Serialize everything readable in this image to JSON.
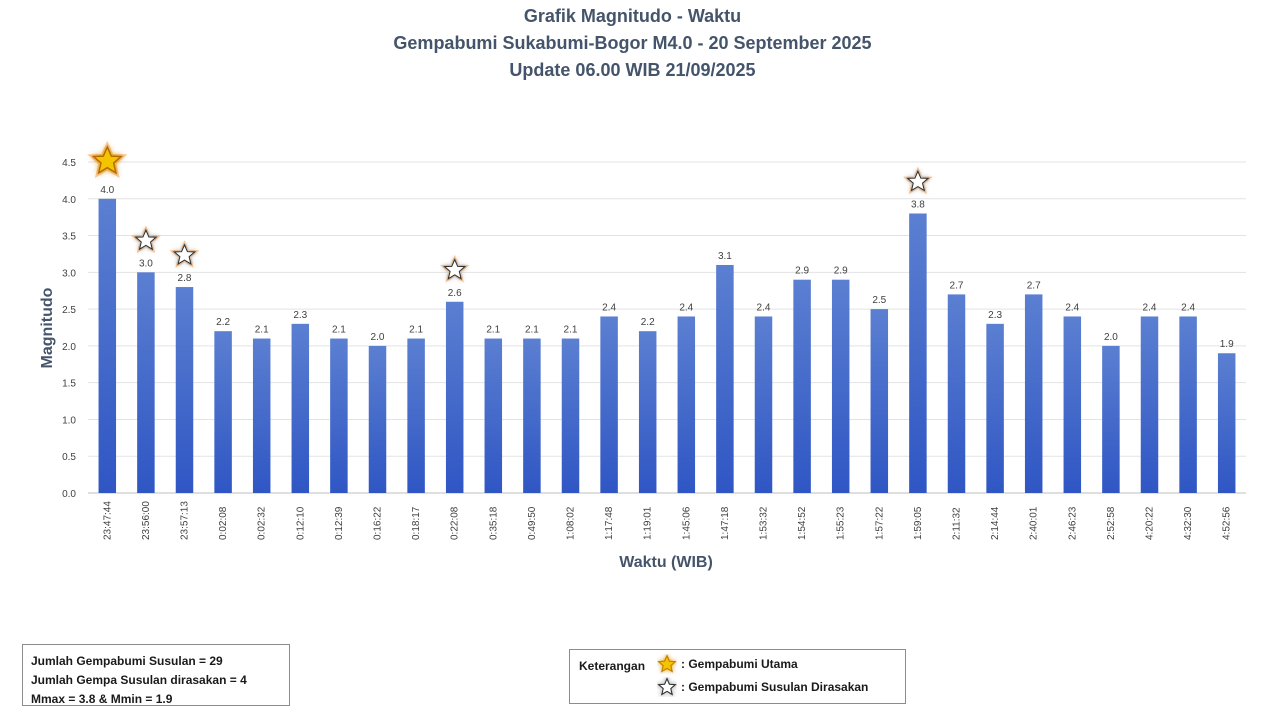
{
  "titles": {
    "line1": "Grafik Magnitudo - Waktu",
    "line2": "Gempabumi Sukabumi-Bogor M4.0 - 20 September 2025",
    "line3": "Update 06.00 WIB 21/09/2025"
  },
  "chart_data": {
    "type": "bar",
    "xlabel": "Waktu (WIB)",
    "ylabel": "Magnitudo",
    "ylim": [
      0,
      4.5
    ],
    "yticks": [
      "0.0",
      "0.5",
      "1.0",
      "1.5",
      "2.0",
      "2.5",
      "3.0",
      "3.5",
      "4.0",
      "4.5"
    ],
    "grid": true,
    "categories": [
      "23:47:44",
      "23:56:00",
      "23:57:13",
      "0:02:08",
      "0:02:32",
      "0:12:10",
      "0:12:39",
      "0:16:22",
      "0:18:17",
      "0:22:08",
      "0:35:18",
      "0:49:50",
      "1:08:02",
      "1:17:48",
      "1:19:01",
      "1:45:06",
      "1:47:18",
      "1:53:32",
      "1:54:52",
      "1:55:23",
      "1:57:22",
      "1:59:05",
      "2:11:32",
      "2:14:44",
      "2:40:01",
      "2:46:23",
      "2:52:58",
      "4:20:22",
      "4:32:30",
      "4:52:56"
    ],
    "values": [
      4.0,
      3.0,
      2.8,
      2.2,
      2.1,
      2.3,
      2.1,
      2.0,
      2.1,
      2.6,
      2.1,
      2.1,
      2.1,
      2.4,
      2.2,
      2.4,
      3.1,
      2.4,
      2.9,
      2.9,
      2.5,
      3.8,
      2.7,
      2.3,
      2.7,
      2.4,
      2.0,
      2.4,
      2.4,
      1.9
    ],
    "labels": [
      "4.0",
      "3.0",
      "2.8",
      "2.2",
      "2.1",
      "2.3",
      "2.1",
      "2.0",
      "2.1",
      "2.6",
      "2.1",
      "2.1",
      "2.1",
      "2.4",
      "2.2",
      "2.4",
      "3.1",
      "2.4",
      "2.9",
      "2.9",
      "2.5",
      "3.8",
      "2.7",
      "2.3",
      "2.7",
      "2.4",
      "2.0",
      "2.4",
      "2.4",
      "1.9"
    ],
    "main_shock_index": 0,
    "felt_aftershock_indices": [
      1,
      2,
      9,
      21
    ],
    "bar_color_top": "#5b7fd1",
    "bar_color_bottom": "#2f56c4"
  },
  "summary": {
    "line1": "Jumlah Gempabumi Susulan = 29",
    "line2": "Jumlah Gempa Susulan dirasakan = 4",
    "line3": "Mmax = 3.8 & Mmin = 1.9"
  },
  "legend": {
    "title": "Keterangan",
    "main": ": Gempabumi Utama",
    "felt": ": Gempabumi Susulan Dirasakan",
    "main_icon": "star-filled-icon",
    "felt_icon": "star-outline-icon"
  }
}
